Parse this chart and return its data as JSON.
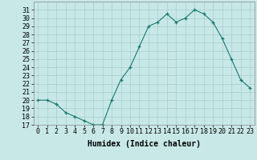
{
  "x": [
    0,
    1,
    2,
    3,
    4,
    5,
    6,
    7,
    8,
    9,
    10,
    11,
    12,
    13,
    14,
    15,
    16,
    17,
    18,
    19,
    20,
    21,
    22,
    23
  ],
  "y": [
    20,
    20,
    19.5,
    18.5,
    18,
    17.5,
    17,
    17,
    20,
    22.5,
    24,
    26.5,
    29,
    29.5,
    30.5,
    29.5,
    30,
    31,
    30.5,
    29.5,
    27.5,
    25,
    22.5,
    21.5
  ],
  "line_color": "#1a7a6e",
  "marker_color": "#1a7a6e",
  "bg_color": "#c8e8e8",
  "grid_color": "#a8cccc",
  "xlabel": "Humidex (Indice chaleur)",
  "ylim": [
    17,
    32
  ],
  "xlim": [
    -0.5,
    23.5
  ],
  "yticks": [
    17,
    18,
    19,
    20,
    21,
    22,
    23,
    24,
    25,
    26,
    27,
    28,
    29,
    30,
    31
  ],
  "xticks": [
    0,
    1,
    2,
    3,
    4,
    5,
    6,
    7,
    8,
    9,
    10,
    11,
    12,
    13,
    14,
    15,
    16,
    17,
    18,
    19,
    20,
    21,
    22,
    23
  ],
  "xtick_labels": [
    "0",
    "1",
    "2",
    "3",
    "4",
    "5",
    "6",
    "7",
    "8",
    "9",
    "10",
    "11",
    "12",
    "13",
    "14",
    "15",
    "16",
    "17",
    "18",
    "19",
    "20",
    "21",
    "22",
    "23"
  ],
  "font_color": "#000000",
  "label_fontsize": 7,
  "tick_fontsize": 6
}
